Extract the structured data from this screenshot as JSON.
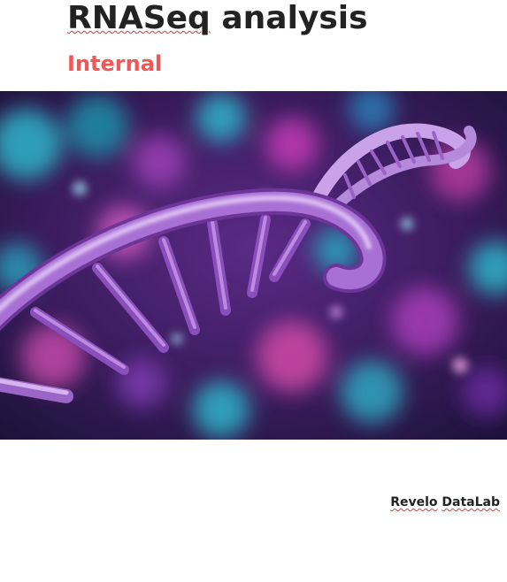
{
  "document": {
    "title_part1": "RNASeq",
    "title_part2": " analysis",
    "subtitle": "Internal",
    "author_part1": "Revelo",
    "author_part2": "DataLab"
  },
  "colors": {
    "subtitle": "#f25757",
    "title": "#222222",
    "image_bg": "#3a1a55",
    "strand": "#b07ad6",
    "rung": "#8a4fbd"
  },
  "icons": {
    "cover": "dna-double-helix-illustration"
  }
}
